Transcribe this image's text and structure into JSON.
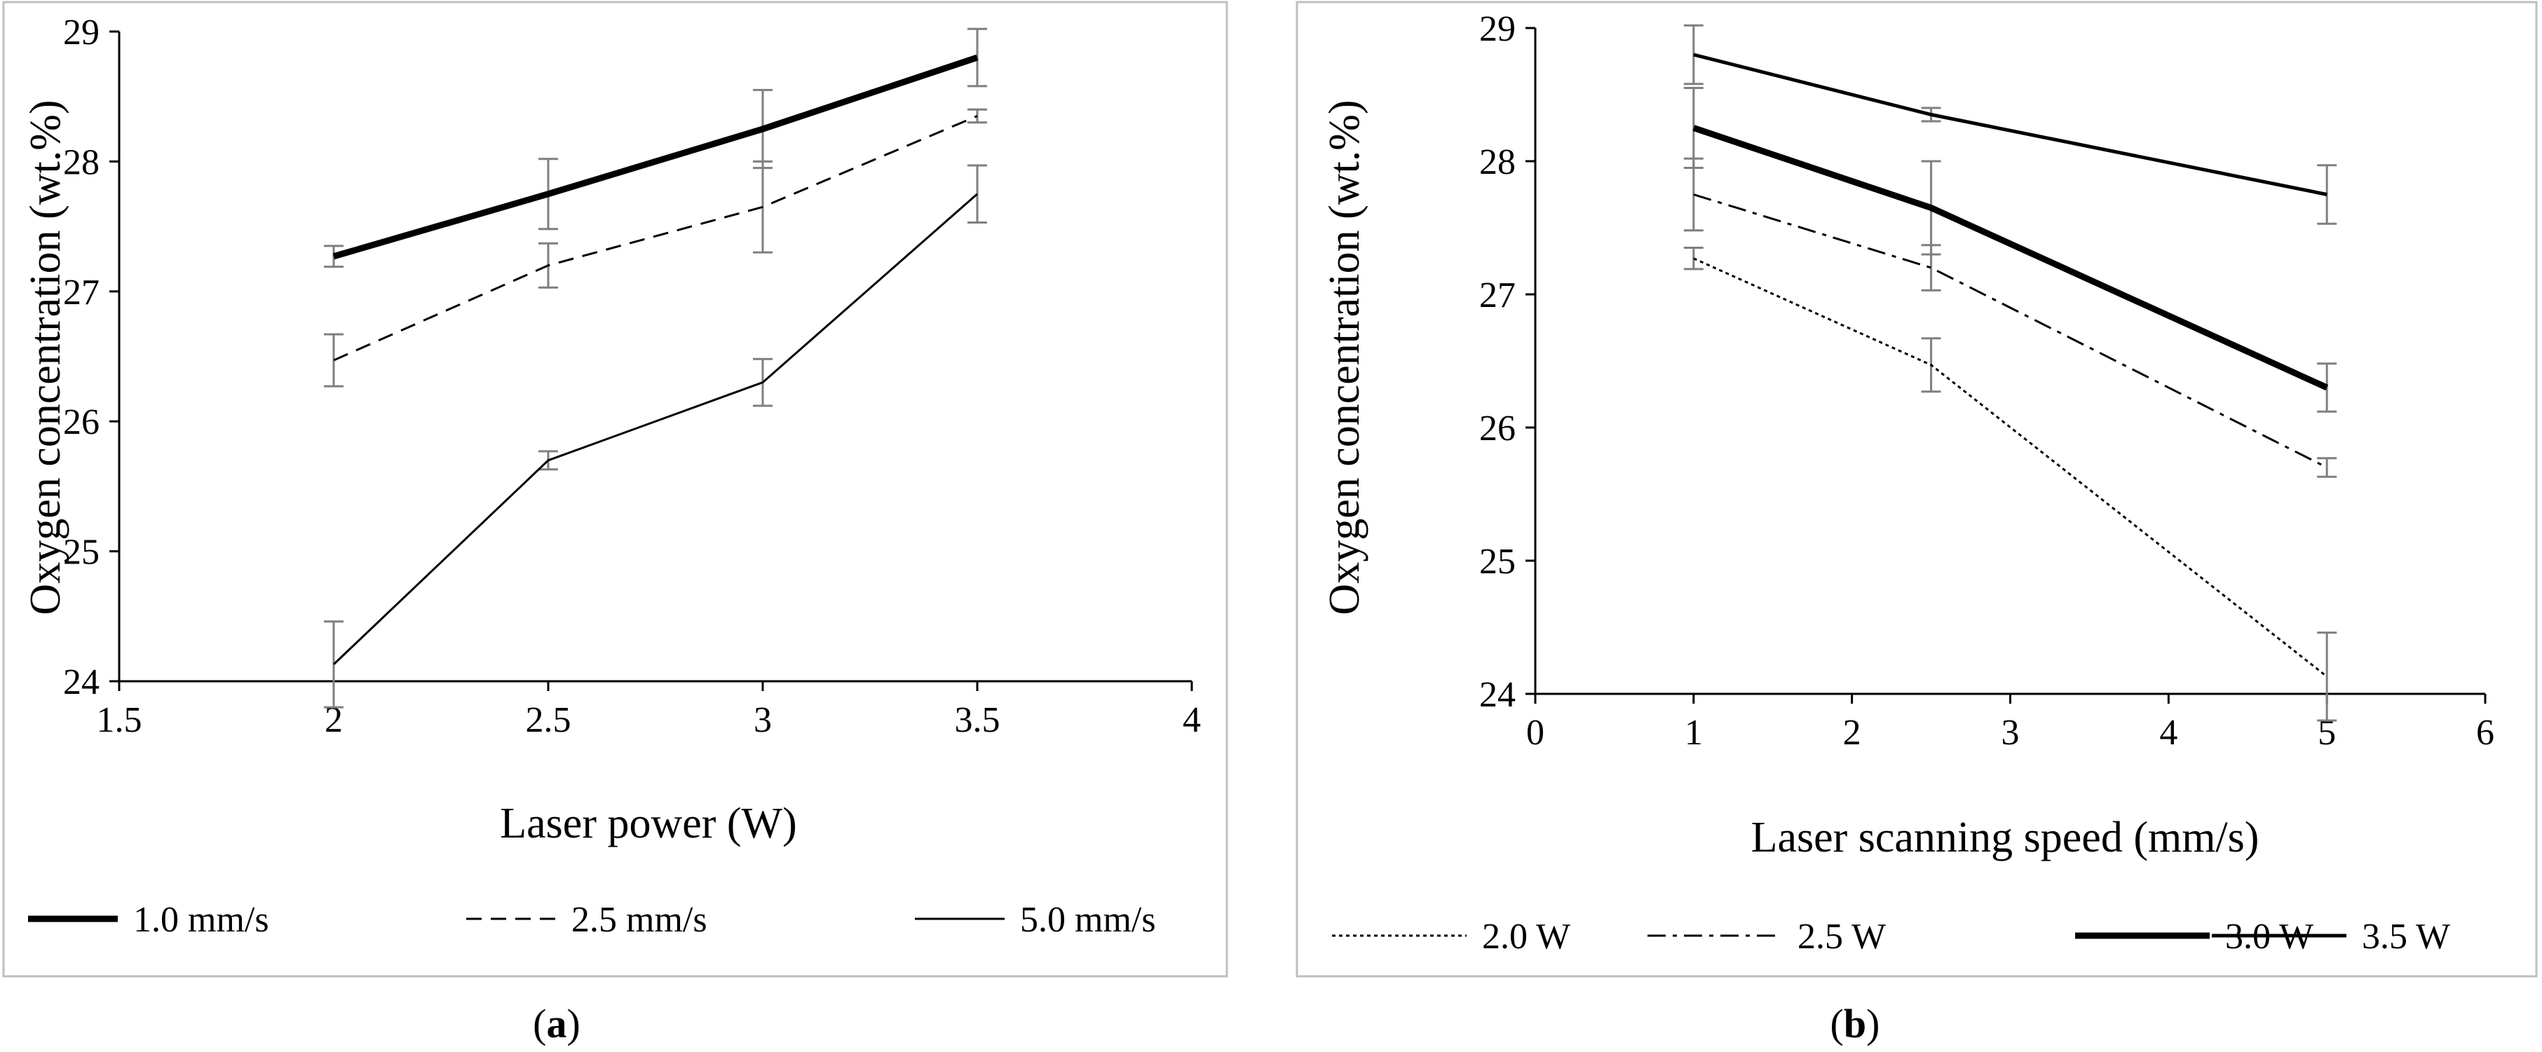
{
  "chart_data": [
    {
      "id": "a",
      "type": "line",
      "caption_letter": "a",
      "xlabel": "Laser power (W)",
      "ylabel": "Oxygen concentration (wt.%)",
      "xlim": [
        1.5,
        4
      ],
      "ylim": [
        24,
        29
      ],
      "xticks": [
        "1.5",
        "2",
        "2.5",
        "3",
        "3.5",
        "4"
      ],
      "yticks": [
        "24",
        "25",
        "26",
        "27",
        "28",
        "29"
      ],
      "grid": false,
      "legend_position": "bottom",
      "series": [
        {
          "name": "1.0 mm/s",
          "style": "thick",
          "x": [
            2,
            2.5,
            3,
            3.5
          ],
          "y": [
            27.27,
            27.75,
            28.25,
            28.8
          ],
          "err": [
            0.08,
            0.27,
            0.3,
            0.22
          ]
        },
        {
          "name": "2.5 mm/s",
          "style": "dashed",
          "x": [
            2,
            2.5,
            3,
            3.5
          ],
          "y": [
            26.47,
            27.2,
            27.65,
            28.35
          ],
          "err": [
            0.2,
            0.17,
            0.35,
            0.05
          ]
        },
        {
          "name": "5.0 mm/s",
          "style": "thin",
          "x": [
            2,
            2.5,
            3,
            3.5
          ],
          "y": [
            24.13,
            25.7,
            26.3,
            27.75
          ],
          "err": [
            0.33,
            0.07,
            0.18,
            0.22
          ]
        }
      ]
    },
    {
      "id": "b",
      "type": "line",
      "caption_letter": "b",
      "xlabel": "Laser scanning speed (mm/s)",
      "ylabel": "Oxygen concentration (wt.%)",
      "xlim": [
        0,
        6
      ],
      "ylim": [
        24,
        29
      ],
      "xticks": [
        "0",
        "1",
        "2",
        "3",
        "4",
        "5",
        "6"
      ],
      "yticks": [
        "24",
        "25",
        "26",
        "27",
        "28",
        "29"
      ],
      "grid": false,
      "legend_position": "bottom",
      "series": [
        {
          "name": "2.0 W",
          "style": "dotted",
          "x": [
            1,
            2.5,
            5
          ],
          "y": [
            27.27,
            26.47,
            24.13
          ],
          "err": [
            0.08,
            0.2,
            0.33
          ]
        },
        {
          "name": "2.5 W",
          "style": "dashdot",
          "x": [
            1,
            2.5,
            5
          ],
          "y": [
            27.75,
            27.2,
            25.7
          ],
          "err": [
            0.27,
            0.17,
            0.07
          ]
        },
        {
          "name": "3.0 W",
          "style": "thick",
          "x": [
            1,
            2.5,
            5
          ],
          "y": [
            28.25,
            27.65,
            26.3
          ],
          "err": [
            0.3,
            0.35,
            0.18
          ]
        },
        {
          "name": "3.5 W",
          "style": "medium",
          "x": [
            1,
            2.5,
            5
          ],
          "y": [
            28.8,
            28.35,
            27.75
          ],
          "err": [
            0.22,
            0.05,
            0.22
          ]
        }
      ]
    }
  ]
}
